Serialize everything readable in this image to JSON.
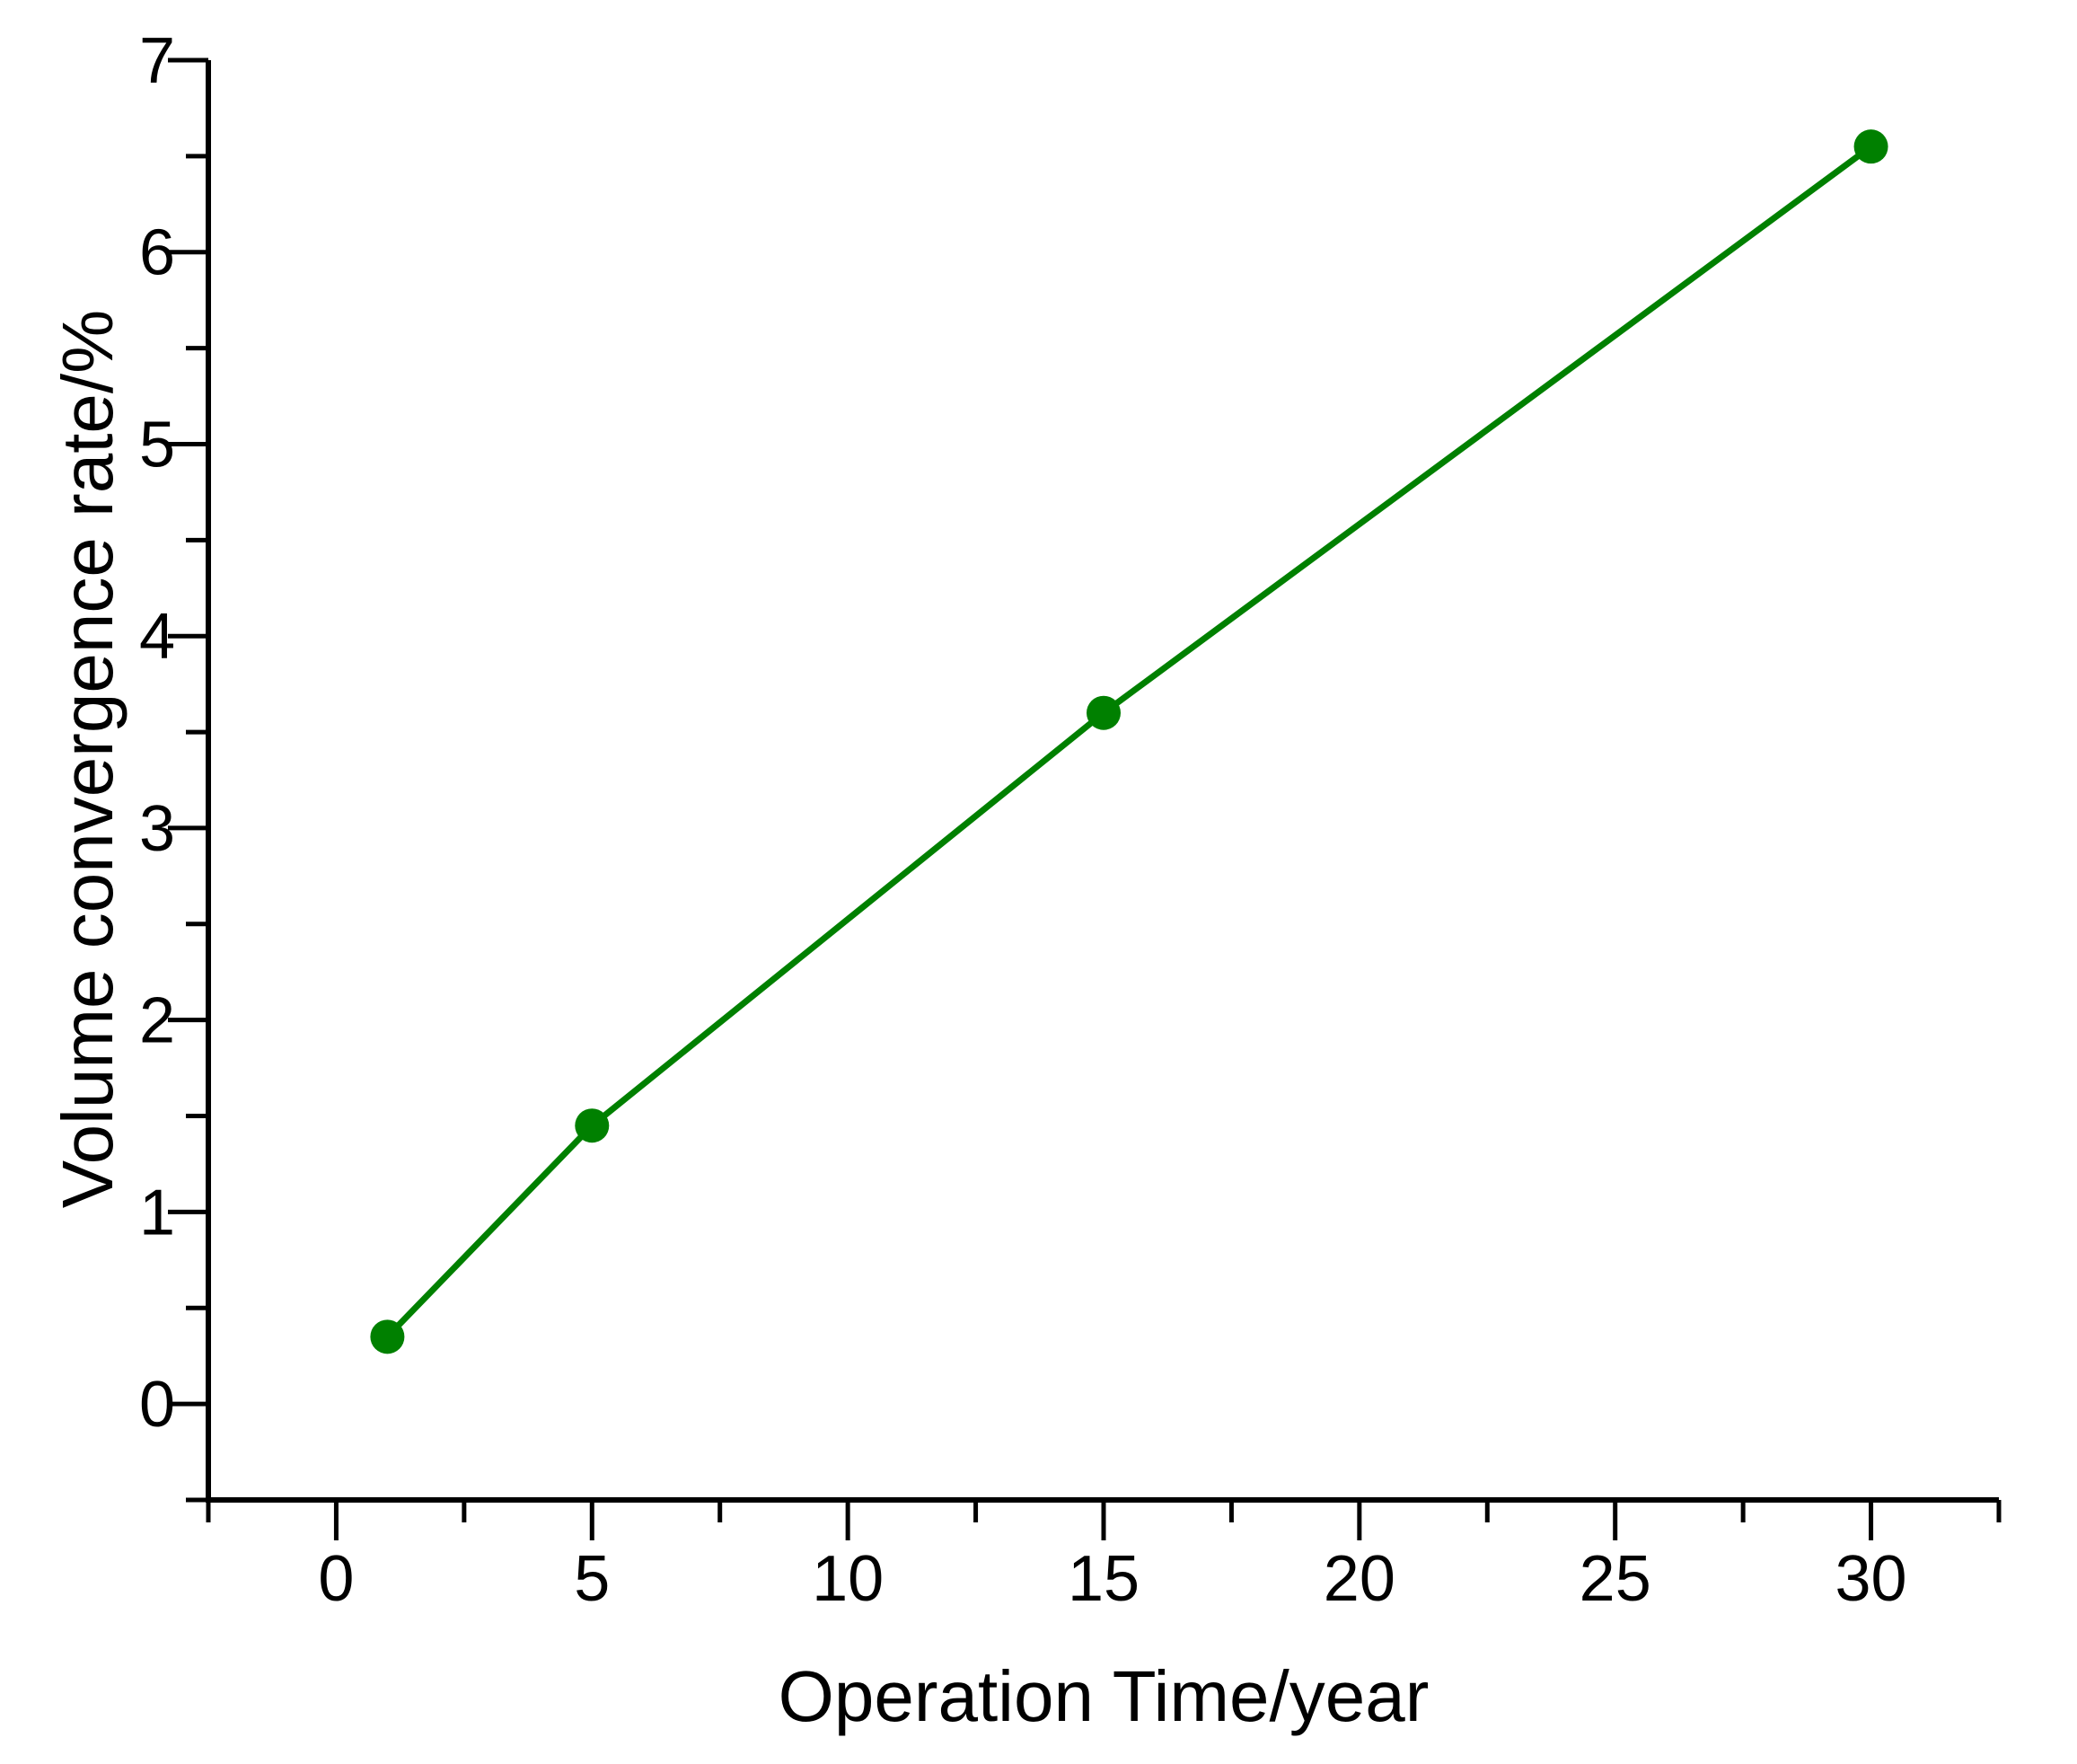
{
  "figure": {
    "background": "#ffffff",
    "axis_color": "#000000",
    "series_color": "#008000"
  },
  "chart_data": {
    "type": "line",
    "title": "",
    "xlabel": "Operation Time/year",
    "ylabel": "Volume convergence rate/%",
    "series": [
      {
        "name": "Volume convergence rate",
        "color": "#008000",
        "marker": "circle",
        "x": [
          1,
          5,
          15,
          30
        ],
        "y": [
          0.35,
          1.45,
          3.6,
          6.55
        ]
      }
    ],
    "xlim": [
      -2.5,
      32.5
    ],
    "ylim": [
      -0.5,
      7
    ],
    "x_major_ticks": [
      0,
      5,
      10,
      15,
      20,
      25,
      30
    ],
    "x_tick_labels": [
      "0",
      "5",
      "10",
      "15",
      "20",
      "25",
      "30"
    ],
    "x_minor_ticks": [
      -2.5,
      2.5,
      7.5,
      12.5,
      17.5,
      22.5,
      27.5,
      32.5
    ],
    "y_major_ticks": [
      0,
      1,
      2,
      3,
      4,
      5,
      6,
      7
    ],
    "y_tick_labels": [
      "0",
      "1",
      "2",
      "3",
      "4",
      "5",
      "6",
      "7"
    ],
    "y_minor_ticks": [
      -0.5,
      0.5,
      1.5,
      2.5,
      3.5,
      4.5,
      5.5,
      6.5
    ],
    "grid": false,
    "legend": "none"
  }
}
